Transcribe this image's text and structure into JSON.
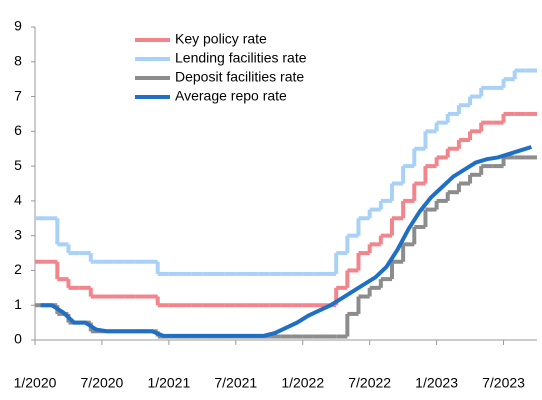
{
  "chart_data": {
    "type": "step-line",
    "x": [
      "2020-01",
      "2020-02",
      "2020-03",
      "2020-04",
      "2020-05",
      "2020-06",
      "2020-07",
      "2020-08",
      "2020-09",
      "2020-10",
      "2020-11",
      "2020-12",
      "2021-01",
      "2021-02",
      "2021-03",
      "2021-04",
      "2021-05",
      "2021-06",
      "2021-07",
      "2021-08",
      "2021-09",
      "2021-10",
      "2021-11",
      "2021-12",
      "2022-01",
      "2022-02",
      "2022-03",
      "2022-04",
      "2022-05",
      "2022-06",
      "2022-07",
      "2022-08",
      "2022-09",
      "2022-10",
      "2022-11",
      "2022-12",
      "2023-01",
      "2023-02",
      "2023-03",
      "2023-04",
      "2023-05",
      "2023-06",
      "2023-07",
      "2023-08",
      "2023-09"
    ],
    "series": [
      {
        "name": "Key policy rate",
        "color": "#f2848c",
        "values": [
          2.25,
          2.25,
          1.75,
          1.5,
          1.5,
          1.25,
          1.25,
          1.25,
          1.25,
          1.25,
          1.25,
          1.0,
          1.0,
          1.0,
          1.0,
          1.0,
          1.0,
          1.0,
          1.0,
          1.0,
          1.0,
          1.0,
          1.0,
          1.0,
          1.0,
          1.0,
          1.0,
          1.5,
          2.0,
          2.5,
          2.75,
          3.0,
          3.5,
          4.0,
          4.5,
          5.0,
          5.25,
          5.5,
          5.75,
          6.0,
          6.25,
          6.25,
          6.5,
          6.5,
          6.5
        ]
      },
      {
        "name": "Lending facilities rate",
        "color": "#a9d1f7",
        "values": [
          3.5,
          3.5,
          2.75,
          2.5,
          2.5,
          2.25,
          2.25,
          2.25,
          2.25,
          2.25,
          2.25,
          1.9,
          1.9,
          1.9,
          1.9,
          1.9,
          1.9,
          1.9,
          1.9,
          1.9,
          1.9,
          1.9,
          1.9,
          1.9,
          1.9,
          1.9,
          1.9,
          2.5,
          3.0,
          3.5,
          3.75,
          4.0,
          4.5,
          5.0,
          5.5,
          6.0,
          6.25,
          6.5,
          6.75,
          7.0,
          7.25,
          7.25,
          7.5,
          7.75,
          7.75
        ]
      },
      {
        "name": "Deposit facilities rate",
        "color": "#8c8c8c",
        "values": [
          1.0,
          1.0,
          0.75,
          0.5,
          0.5,
          0.25,
          0.25,
          0.25,
          0.25,
          0.25,
          0.25,
          0.1,
          0.1,
          0.1,
          0.1,
          0.1,
          0.1,
          0.1,
          0.1,
          0.1,
          0.1,
          0.1,
          0.1,
          0.1,
          0.1,
          0.1,
          0.1,
          0.1,
          0.75,
          1.25,
          1.5,
          1.75,
          2.25,
          2.75,
          3.25,
          3.75,
          4.0,
          4.25,
          4.5,
          4.75,
          5.0,
          5.0,
          5.25,
          5.25,
          5.25
        ]
      },
      {
        "name": "Average repo rate",
        "color": "#1f6fc5",
        "smooth": true,
        "values": [
          1.0,
          1.0,
          0.8,
          0.5,
          0.5,
          0.3,
          0.25,
          0.25,
          0.25,
          0.25,
          0.25,
          0.12,
          0.12,
          0.12,
          0.12,
          0.12,
          0.12,
          0.12,
          0.12,
          0.12,
          0.12,
          0.2,
          0.35,
          0.5,
          0.7,
          0.85,
          1.0,
          1.2,
          1.4,
          1.6,
          1.8,
          2.1,
          2.6,
          3.2,
          3.7,
          4.1,
          4.4,
          4.7,
          4.9,
          5.1,
          5.2,
          5.25,
          5.35,
          5.45,
          5.55
        ]
      }
    ],
    "xlim": [
      "2020-01",
      "2023-10"
    ],
    "xticks": [
      {
        "value": "2020-01",
        "label": "1/2020"
      },
      {
        "value": "2020-07",
        "label": "7/2020"
      },
      {
        "value": "2021-01",
        "label": "1/2021"
      },
      {
        "value": "2021-07",
        "label": "7/2021"
      },
      {
        "value": "2022-01",
        "label": "1/2022"
      },
      {
        "value": "2022-07",
        "label": "7/2022"
      },
      {
        "value": "2023-01",
        "label": "1/2023"
      },
      {
        "value": "2023-07",
        "label": "7/2023"
      }
    ],
    "ylim": [
      0,
      9
    ],
    "yticks": [
      0,
      1,
      2,
      3,
      4,
      5,
      6,
      7,
      8,
      9
    ]
  }
}
